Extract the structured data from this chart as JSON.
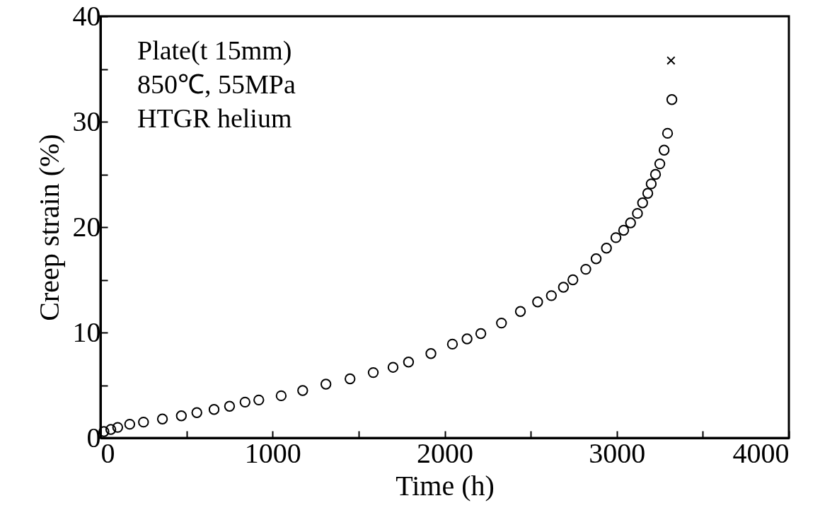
{
  "chart_data": {
    "type": "scatter",
    "xlabel": "Time (h)",
    "ylabel": "Creep strain (%)",
    "annotations": [
      "Plate(t 15mm)",
      "850℃, 55MPa",
      "HTGR helium"
    ],
    "xlim": [
      0,
      4000
    ],
    "xticks": [
      0,
      {
        "value": 500,
        "label": null
      },
      1000,
      {
        "value": 1500,
        "label": null
      },
      2000,
      {
        "value": 2500,
        "label": null
      },
      3000,
      {
        "value": 3500,
        "label": null
      },
      4000
    ],
    "ylim": [
      0,
      40
    ],
    "yticks": [
      0,
      {
        "value": 5,
        "label": null
      },
      10,
      {
        "value": 15,
        "label": null
      },
      20,
      {
        "value": 25,
        "label": null
      },
      30,
      {
        "value": 35,
        "label": null
      },
      40
    ],
    "grid": false,
    "series": [
      {
        "marker": "circle",
        "color": "#000000",
        "x": [
          20,
          60,
          100,
          170,
          250,
          360,
          470,
          560,
          660,
          750,
          840,
          920,
          1050,
          1175,
          1310,
          1450,
          1585,
          1700,
          1790,
          1920,
          2045,
          2130,
          2210,
          2330,
          2440,
          2540,
          2620,
          2690,
          2745,
          2820,
          2880,
          2940,
          2995,
          3040,
          3080,
          3120,
          3150,
          3180,
          3200,
          3225,
          3250,
          3275,
          3295,
          3320
        ],
        "values": [
          0.6,
          0.8,
          1.0,
          1.3,
          1.5,
          1.8,
          2.1,
          2.4,
          2.7,
          3.0,
          3.4,
          3.6,
          4.0,
          4.5,
          5.1,
          5.6,
          6.2,
          6.7,
          7.2,
          8.0,
          8.9,
          9.4,
          9.9,
          10.9,
          12.0,
          12.9,
          13.5,
          14.3,
          15.0,
          16.0,
          17.0,
          18.0,
          19.0,
          19.7,
          20.4,
          21.3,
          22.3,
          23.2,
          24.1,
          25.0,
          26.0,
          27.3,
          28.9,
          32.1
        ]
      },
      {
        "marker": "cross",
        "color": "#000000",
        "x": [
          3315
        ],
        "values": [
          35.8
        ]
      }
    ]
  }
}
